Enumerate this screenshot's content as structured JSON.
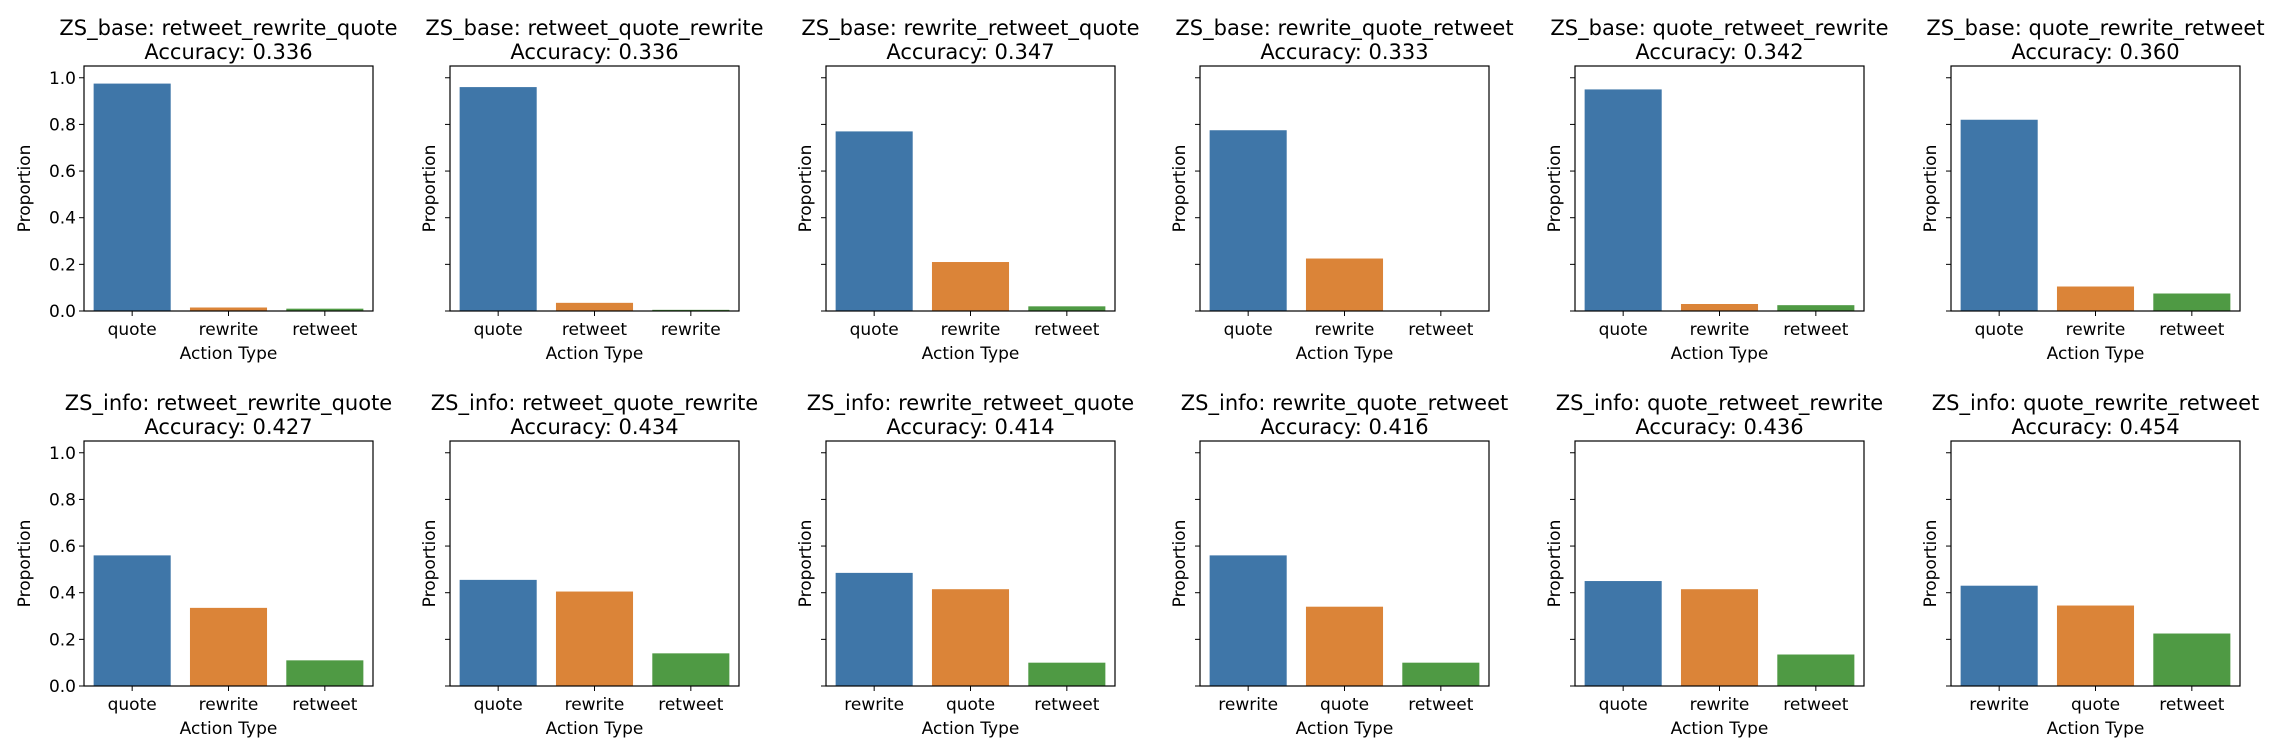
{
  "figure": {
    "ylabel": "Proportion",
    "xlabel": "Action Type",
    "ylim": [
      0,
      1.0
    ],
    "yticks": [
      "0.0",
      "0.2",
      "0.4",
      "0.6",
      "0.8",
      "1.0"
    ]
  },
  "colors": [
    "#3f76a8",
    "#db8438",
    "#4f9a44"
  ],
  "chart_data": [
    {
      "type": "bar",
      "title": "ZS_base: retweet_rewrite_quote",
      "subtitle": "Accuracy: 0.336",
      "xlabel": "Action Type",
      "ylabel": "Proportion",
      "ylim": [
        0,
        1.0
      ],
      "categories": [
        "quote",
        "rewrite",
        "retweet"
      ],
      "values": [
        0.975,
        0.015,
        0.01
      ]
    },
    {
      "type": "bar",
      "title": "ZS_base: retweet_quote_rewrite",
      "subtitle": "Accuracy: 0.336",
      "xlabel": "Action Type",
      "ylabel": "Proportion",
      "ylim": [
        0,
        1.0
      ],
      "categories": [
        "quote",
        "retweet",
        "rewrite"
      ],
      "values": [
        0.96,
        0.035,
        0.005
      ]
    },
    {
      "type": "bar",
      "title": "ZS_base: rewrite_retweet_quote",
      "subtitle": "Accuracy: 0.347",
      "xlabel": "Action Type",
      "ylabel": "Proportion",
      "ylim": [
        0,
        1.0
      ],
      "categories": [
        "quote",
        "rewrite",
        "retweet"
      ],
      "values": [
        0.77,
        0.21,
        0.02
      ]
    },
    {
      "type": "bar",
      "title": "ZS_base: rewrite_quote_retweet",
      "subtitle": "Accuracy: 0.333",
      "xlabel": "Action Type",
      "ylabel": "Proportion",
      "ylim": [
        0,
        1.0
      ],
      "categories": [
        "quote",
        "rewrite",
        "retweet"
      ],
      "values": [
        0.775,
        0.225,
        0.0
      ]
    },
    {
      "type": "bar",
      "title": "ZS_base: quote_retweet_rewrite",
      "subtitle": "Accuracy: 0.342",
      "xlabel": "Action Type",
      "ylabel": "Proportion",
      "ylim": [
        0,
        1.0
      ],
      "categories": [
        "quote",
        "rewrite",
        "retweet"
      ],
      "values": [
        0.95,
        0.03,
        0.025
      ]
    },
    {
      "type": "bar",
      "title": "ZS_base: quote_rewrite_retweet",
      "subtitle": "Accuracy: 0.360",
      "xlabel": "Action Type",
      "ylabel": "Proportion",
      "ylim": [
        0,
        1.0
      ],
      "categories": [
        "quote",
        "rewrite",
        "retweet"
      ],
      "values": [
        0.82,
        0.105,
        0.075
      ]
    },
    {
      "type": "bar",
      "title": "ZS_info: retweet_rewrite_quote",
      "subtitle": "Accuracy: 0.427",
      "xlabel": "Action Type",
      "ylabel": "Proportion",
      "ylim": [
        0,
        1.0
      ],
      "categories": [
        "quote",
        "rewrite",
        "retweet"
      ],
      "values": [
        0.56,
        0.335,
        0.11
      ]
    },
    {
      "type": "bar",
      "title": "ZS_info: retweet_quote_rewrite",
      "subtitle": "Accuracy: 0.434",
      "xlabel": "Action Type",
      "ylabel": "Proportion",
      "ylim": [
        0,
        1.0
      ],
      "categories": [
        "quote",
        "rewrite",
        "retweet"
      ],
      "values": [
        0.455,
        0.405,
        0.14
      ]
    },
    {
      "type": "bar",
      "title": "ZS_info: rewrite_retweet_quote",
      "subtitle": "Accuracy: 0.414",
      "xlabel": "Action Type",
      "ylabel": "Proportion",
      "ylim": [
        0,
        1.0
      ],
      "categories": [
        "rewrite",
        "quote",
        "retweet"
      ],
      "values": [
        0.485,
        0.415,
        0.1
      ]
    },
    {
      "type": "bar",
      "title": "ZS_info: rewrite_quote_retweet",
      "subtitle": "Accuracy: 0.416",
      "xlabel": "Action Type",
      "ylabel": "Proportion",
      "ylim": [
        0,
        1.0
      ],
      "categories": [
        "rewrite",
        "quote",
        "retweet"
      ],
      "values": [
        0.56,
        0.34,
        0.1
      ]
    },
    {
      "type": "bar",
      "title": "ZS_info: quote_retweet_rewrite",
      "subtitle": "Accuracy: 0.436",
      "xlabel": "Action Type",
      "ylabel": "Proportion",
      "ylim": [
        0,
        1.0
      ],
      "categories": [
        "quote",
        "rewrite",
        "retweet"
      ],
      "values": [
        0.45,
        0.415,
        0.135
      ]
    },
    {
      "type": "bar",
      "title": "ZS_info: quote_rewrite_retweet",
      "subtitle": "Accuracy: 0.454",
      "xlabel": "Action Type",
      "ylabel": "Proportion",
      "ylim": [
        0,
        1.0
      ],
      "categories": [
        "rewrite",
        "quote",
        "retweet"
      ],
      "values": [
        0.43,
        0.345,
        0.225
      ]
    }
  ]
}
